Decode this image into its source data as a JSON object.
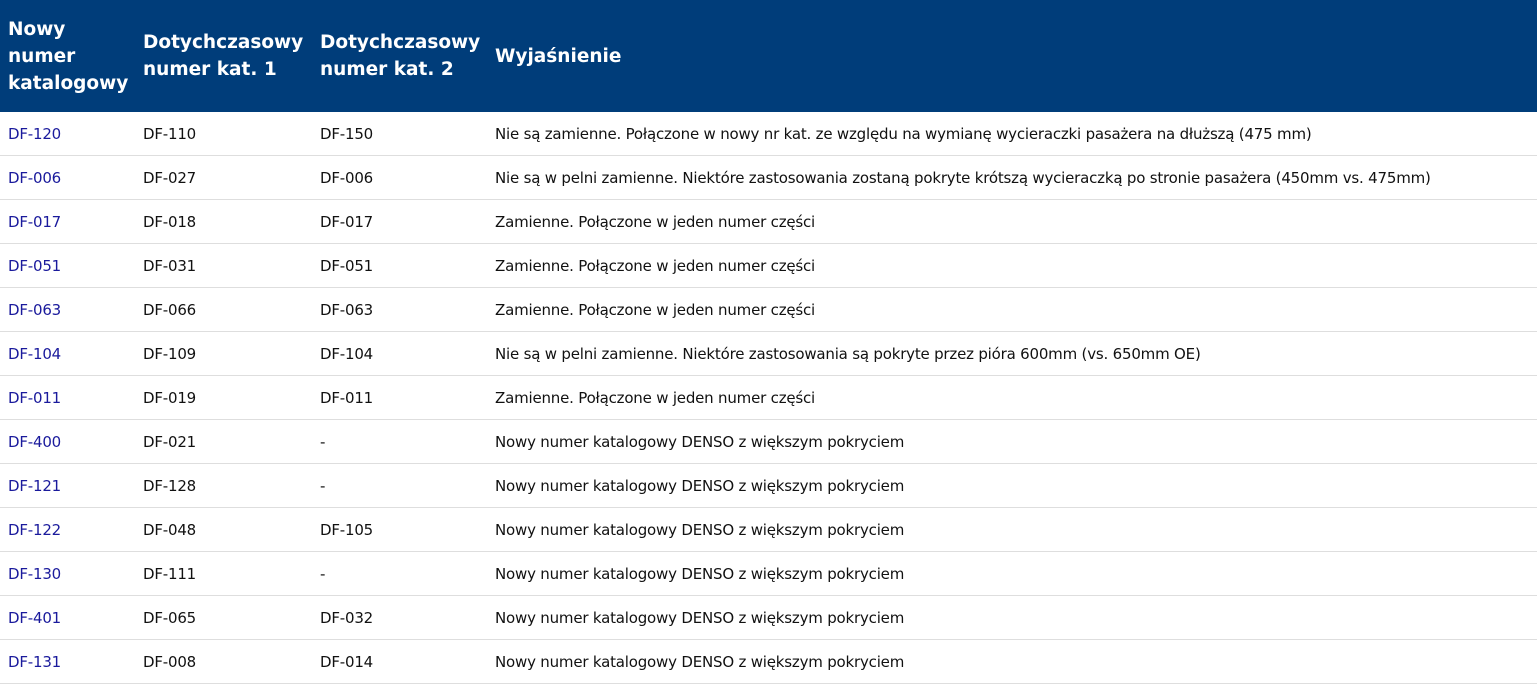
{
  "table": {
    "headers": [
      "Nowy numer katalogowy",
      "Dotychczasowy numer kat. 1",
      "Dotychczasowy numer kat. 2",
      "Wyjaśnienie"
    ],
    "rows": [
      [
        "DF-120",
        "DF-110",
        "DF-150",
        "Nie są zamienne. Połączone w nowy nr kat. ze względu na wymianę wycieraczki pasażera na dłuższą (475 mm)"
      ],
      [
        "DF-006",
        "DF-027",
        "DF-006",
        "Nie są w pelni zamienne. Niektóre zastosowania zostaną pokryte krótszą wycieraczką po stronie pasażera (450mm vs. 475mm)"
      ],
      [
        "DF-017",
        "DF-018",
        "DF-017",
        "Zamienne. Połączone w jeden numer części"
      ],
      [
        "DF-051",
        "DF-031",
        "DF-051",
        "Zamienne. Połączone w jeden numer części"
      ],
      [
        "DF-063",
        "DF-066",
        "DF-063",
        "Zamienne. Połączone w jeden numer części"
      ],
      [
        "DF-104",
        "DF-109",
        "DF-104",
        "Nie są w pelni zamienne. Niektóre zastosowania są pokryte przez pióra 600mm (vs. 650mm OE)"
      ],
      [
        "DF-011",
        "DF-019",
        "DF-011",
        "Zamienne. Połączone w jeden numer części"
      ],
      [
        "DF-400",
        "DF-021",
        "-",
        "Nowy numer katalogowy DENSO z większym pokryciem"
      ],
      [
        "DF-121",
        "DF-128",
        "-",
        "Nowy numer katalogowy DENSO z większym pokryciem"
      ],
      [
        "DF-122",
        "DF-048",
        "DF-105",
        "Nowy numer katalogowy DENSO z większym pokryciem"
      ],
      [
        "DF-130",
        "DF-111",
        "-",
        "Nowy numer katalogowy DENSO z większym pokryciem"
      ],
      [
        "DF-401",
        "DF-065",
        "DF-032",
        "Nowy numer katalogowy DENSO z większym pokryciem"
      ],
      [
        "DF-131",
        "DF-008",
        "DF-014",
        "Nowy numer katalogowy DENSO z większym pokryciem"
      ]
    ]
  },
  "colors": {
    "header_bg": "#003d7a",
    "link": "#1a1a9c"
  }
}
